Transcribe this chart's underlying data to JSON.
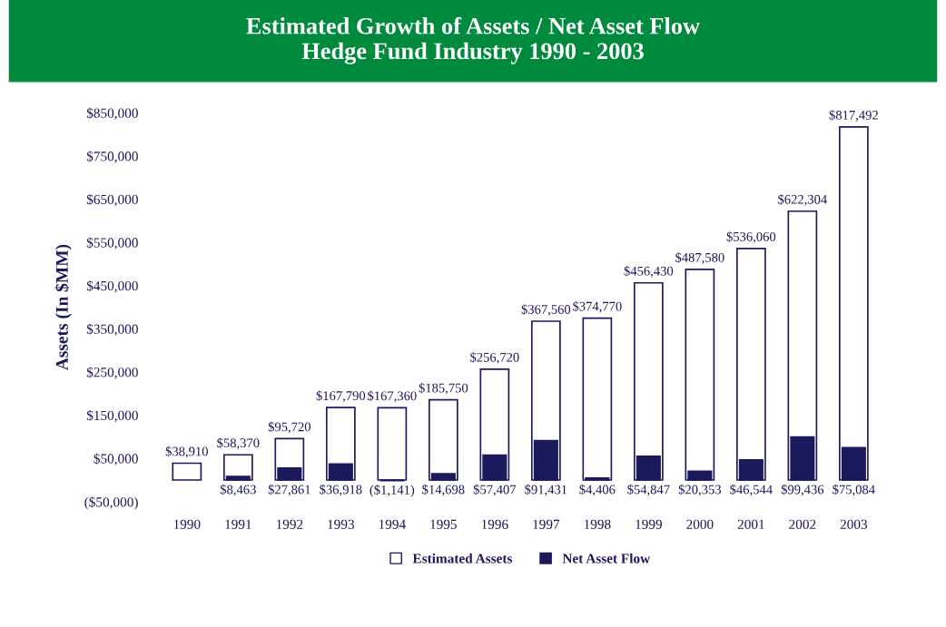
{
  "chart_data": {
    "type": "bar",
    "title": "Estimated Growth of Assets / Net Asset Flow\nHedge Fund Industry 1990 - 2003",
    "ylabel": "Assets (In $MM)",
    "categories": [
      "1990",
      "1991",
      "1992",
      "1993",
      "1994",
      "1995",
      "1996",
      "1997",
      "1998",
      "1999",
      "2000",
      "2001",
      "2002",
      "2003"
    ],
    "series": [
      {
        "name": "Estimated Assets",
        "color": "#ffffff",
        "values": [
          38910,
          58370,
          95720,
          167790,
          167360,
          185750,
          256720,
          367560,
          374770,
          456430,
          487580,
          536060,
          622304,
          817492
        ],
        "value_labels": [
          "$38,910",
          "$58,370",
          "$95,720",
          "$167,790",
          "$167,360",
          "$185,750",
          "$256,720",
          "$367,560",
          "$374,770",
          "$456,430",
          "$487,580",
          "$536,060",
          "$622,304",
          "$817,492"
        ]
      },
      {
        "name": "Net Asset Flow",
        "color": "#1b1a5c",
        "values": [
          null,
          8463,
          27861,
          36918,
          -1141,
          14698,
          57407,
          91431,
          4406,
          54847,
          20353,
          46544,
          99436,
          75084
        ],
        "value_labels": [
          null,
          "$8,463",
          "$27,861",
          "$36,918",
          "($1,141)",
          "$14,698",
          "$57,407",
          "$91,431",
          "$4,406",
          "$54,847",
          "$20,353",
          "$46,544",
          "$99,436",
          "$75,084"
        ]
      }
    ],
    "ylim": [
      -50000,
      850000
    ],
    "yticks": [
      {
        "value": -50000,
        "label": "($50,000)"
      },
      {
        "value": 50000,
        "label": "$50,000"
      },
      {
        "value": 150000,
        "label": "$150,000"
      },
      {
        "value": 250000,
        "label": "$250,000"
      },
      {
        "value": 350000,
        "label": "$350,000"
      },
      {
        "value": 450000,
        "label": "$450,000"
      },
      {
        "value": 550000,
        "label": "$550,000"
      },
      {
        "value": 650000,
        "label": "$650,000"
      },
      {
        "value": 750000,
        "label": "$750,000"
      },
      {
        "value": 850000,
        "label": "$850,000"
      }
    ],
    "grid": false,
    "legend": "bottom"
  }
}
